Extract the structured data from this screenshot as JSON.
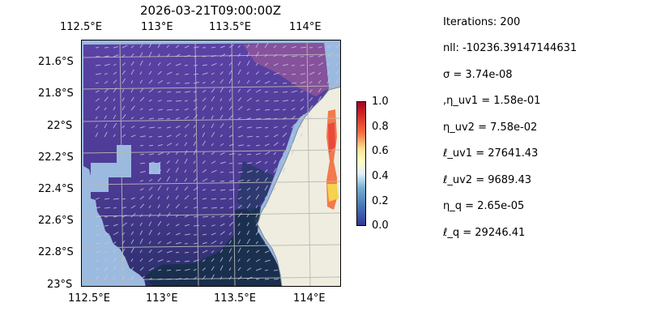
{
  "title": "2026-03-21T09:00:00Z",
  "map": {
    "lon_ticks": [
      "112.5°E",
      "113°E",
      "113.5°E",
      "114°E"
    ],
    "lat_ticks": [
      "21.6°S",
      "21.8°S",
      "22°S",
      "22.2°S",
      "22.4°S",
      "22.6°S",
      "22.8°S",
      "23°S"
    ],
    "colors": {
      "ocean": "#9bbadf",
      "land": "#efede0",
      "field_light": "#6a4fa8",
      "field_dark": "#17304a"
    }
  },
  "colorbar": {
    "ticks": [
      "1.0",
      "0.8",
      "0.6",
      "0.4",
      "0.2",
      "0.0"
    ],
    "colormap": "RdYlBu_r"
  },
  "stats": [
    "Iterations: 200",
    "nll: -10236.39147144631",
    "σ = 3.74e-08",
    ",η_uv1 = 1.58e-01",
    "η_uv2 = 7.58e-02",
    "ℓ_uv1 = 27641.43",
    "ℓ_uv2 = 9689.43",
    "η_q = 2.65e-05",
    "ℓ_q = 29246.41"
  ]
}
